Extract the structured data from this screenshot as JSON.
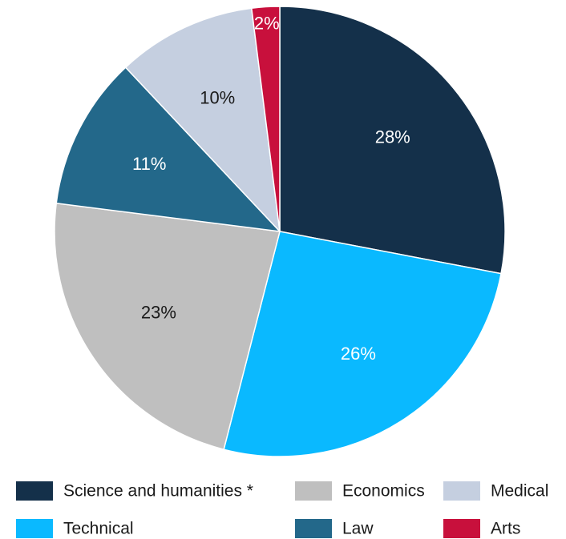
{
  "chart_data": {
    "type": "pie",
    "categories": [
      "Science and humanities *",
      "Technical",
      "Economics",
      "Law",
      "Medical",
      "Arts"
    ],
    "values": [
      28,
      26,
      23,
      11,
      10,
      2
    ],
    "labels": [
      "28%",
      "26%",
      "23%",
      "11%",
      "10%",
      "2%"
    ],
    "colors": [
      "#14304a",
      "#0ab9ff",
      "#bfbfbf",
      "#23688a",
      "#c5cfe0",
      "#c8103c"
    ],
    "label_colors": [
      "#ffffff",
      "#ffffff",
      "#1a1a1a",
      "#ffffff",
      "#1a1a1a",
      "#ffffff"
    ],
    "start_angle": "12 o'clock",
    "direction": "clockwise",
    "legend": {
      "placement": "bottom",
      "columns": 3
    }
  }
}
